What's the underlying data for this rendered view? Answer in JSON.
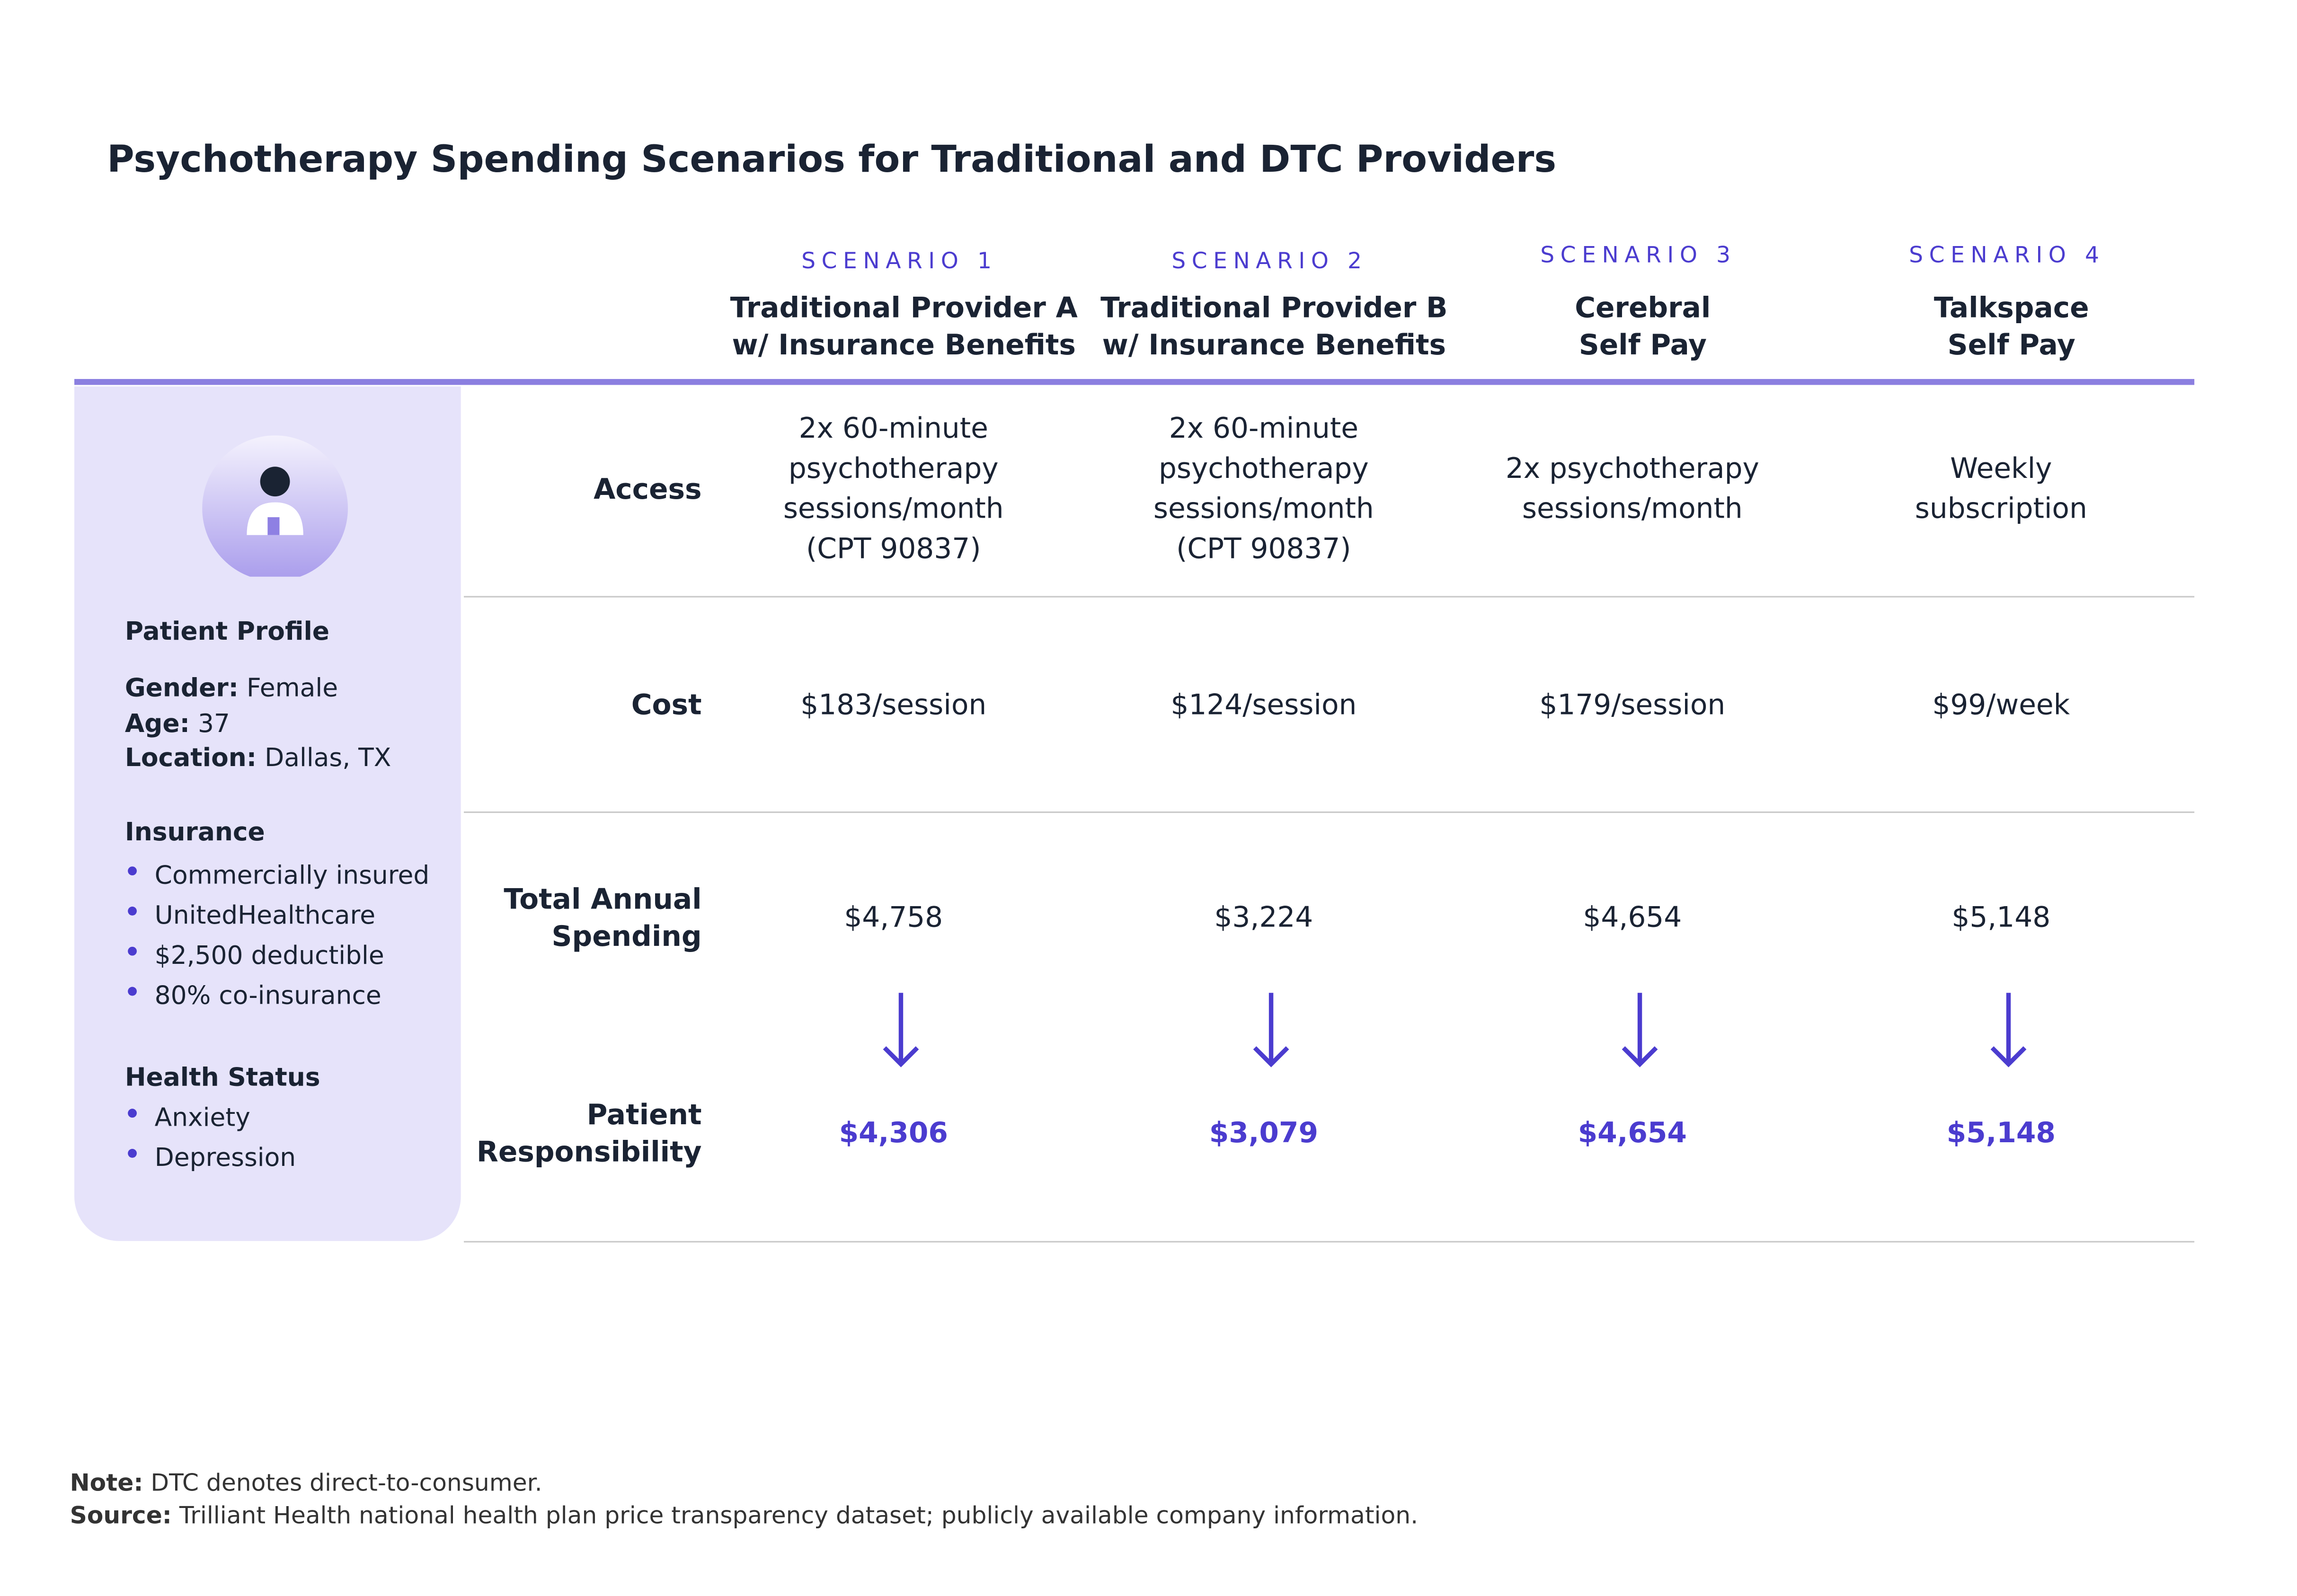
{
  "header": {
    "title": "Psychotherapy Spending Scenarios for Traditional and DTC Providers"
  },
  "scenarios": [
    {
      "label": "SCENARIO 1",
      "name": [
        "Traditional Provider A",
        "w/ Insurance Benefits"
      ]
    },
    {
      "label": "SCENARIO 2",
      "name": [
        "Traditional Provider B",
        "w/ Insurance Benefits"
      ]
    },
    {
      "label": "SCENARIO 3",
      "name": [
        "Cerebral",
        "Self Pay"
      ]
    },
    {
      "label": "SCENARIO 4",
      "name": [
        "Talkspace",
        "Self Pay"
      ]
    }
  ],
  "table": {
    "row_labels": [
      [
        "Access"
      ],
      [
        "Cost"
      ],
      [
        "Total Annual",
        "Spending"
      ],
      [
        "Patient",
        "Responsibility"
      ]
    ],
    "access": [
      [
        "2x 60-minute",
        "psychotherapy",
        "sessions/month",
        "(CPT 90837)"
      ],
      [
        "2x 60-minute",
        "psychotherapy",
        "sessions/month",
        "(CPT 90837)"
      ],
      [
        "2x psychotherapy",
        "sessions/month"
      ],
      [
        "Weekly",
        "subscription"
      ]
    ],
    "cost": [
      "$183/session",
      "$124/session",
      "$179/session",
      "$99/week"
    ],
    "total": [
      "$4,758",
      "$3,224",
      "$4,654",
      "$5,148"
    ],
    "responsibility": [
      "$4,306",
      "$3,079",
      "$4,654",
      "$5,148"
    ]
  },
  "profile": {
    "title": "Patient Profile",
    "fields": [
      {
        "label": "Gender:",
        "value": "Female"
      },
      {
        "label": "Age:",
        "value": "37"
      },
      {
        "label": "Location:",
        "value": "Dallas, TX"
      }
    ],
    "insurance": {
      "title": "Insurance",
      "items": [
        "Commercially insured",
        "UnitedHealthcare",
        "$2,500 deductible",
        "80% co-insurance"
      ]
    },
    "health": {
      "title": "Health Status",
      "items": [
        "Anxiety",
        "Depression"
      ]
    }
  },
  "footer": {
    "note": {
      "label": "Note:",
      "text": "DTC denotes direct-to-consumer."
    },
    "source": {
      "label": "Source:",
      "text": "Trilliant Health national health plan price transparency dataset; publicly available company information."
    }
  }
}
